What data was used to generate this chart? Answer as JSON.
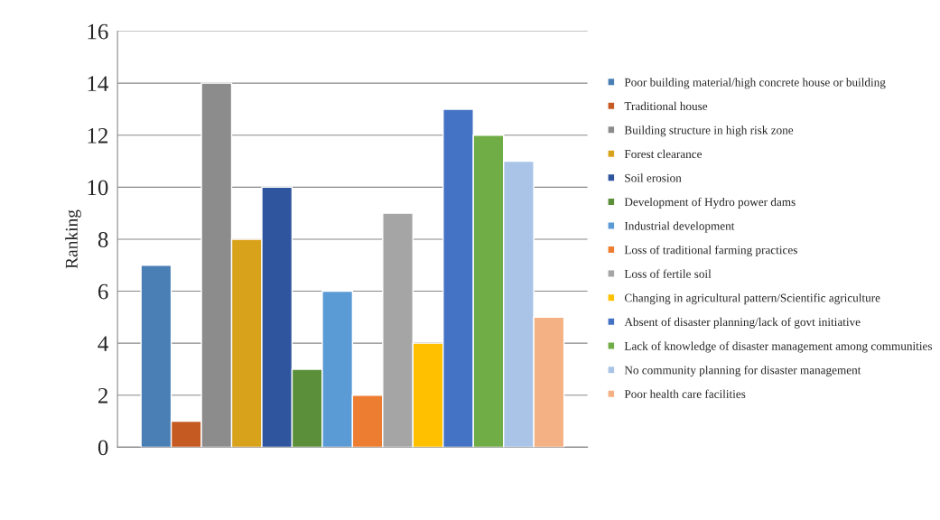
{
  "chart_data": {
    "type": "bar",
    "ylabel": "Ranking",
    "categories": [
      null
    ],
    "series": [
      {
        "name": "Poor building material/high concrete house or building",
        "color": "#4a7fb5",
        "values": [
          7
        ]
      },
      {
        "name": "Traditional house",
        "color": "#c55a22",
        "values": [
          1
        ]
      },
      {
        "name": "Building structure in high risk zone",
        "color": "#8c8c8c",
        "values": [
          14
        ]
      },
      {
        "name": "Forest clearance",
        "color": "#d9a21b",
        "values": [
          8
        ]
      },
      {
        "name": "Soil erosion",
        "color": "#2f559e",
        "values": [
          10
        ]
      },
      {
        "name": "Development of Hydro power dams",
        "color": "#5b8f3a",
        "values": [
          3
        ]
      },
      {
        "name": "Industrial development",
        "color": "#5b9bd5",
        "values": [
          6
        ]
      },
      {
        "name": "Loss of traditional farming practices",
        "color": "#ed7d31",
        "values": [
          2
        ]
      },
      {
        "name": "Loss of fertile soil",
        "color": "#a5a5a5",
        "values": [
          9
        ]
      },
      {
        "name": "Changing in agricultural pattern/Scientific agriculture",
        "color": "#ffc000",
        "values": [
          4
        ]
      },
      {
        "name": "Absent of disaster planning/lack of govt initiative",
        "color": "#4472c4",
        "values": [
          13
        ]
      },
      {
        "name": "Lack of knowledge of disaster management among communities",
        "color": "#70ad47",
        "values": [
          12
        ]
      },
      {
        "name": "No community planning for disaster management",
        "color": "#a9c4e6",
        "values": [
          11
        ]
      },
      {
        "name": "Poor health care facilities",
        "color": "#f4b183",
        "values": [
          5
        ]
      }
    ],
    "ylim": [
      0,
      16
    ],
    "yticks": [
      0,
      2,
      4,
      6,
      8,
      10,
      12,
      14,
      16
    ],
    "grid": "y",
    "legend": "right"
  }
}
